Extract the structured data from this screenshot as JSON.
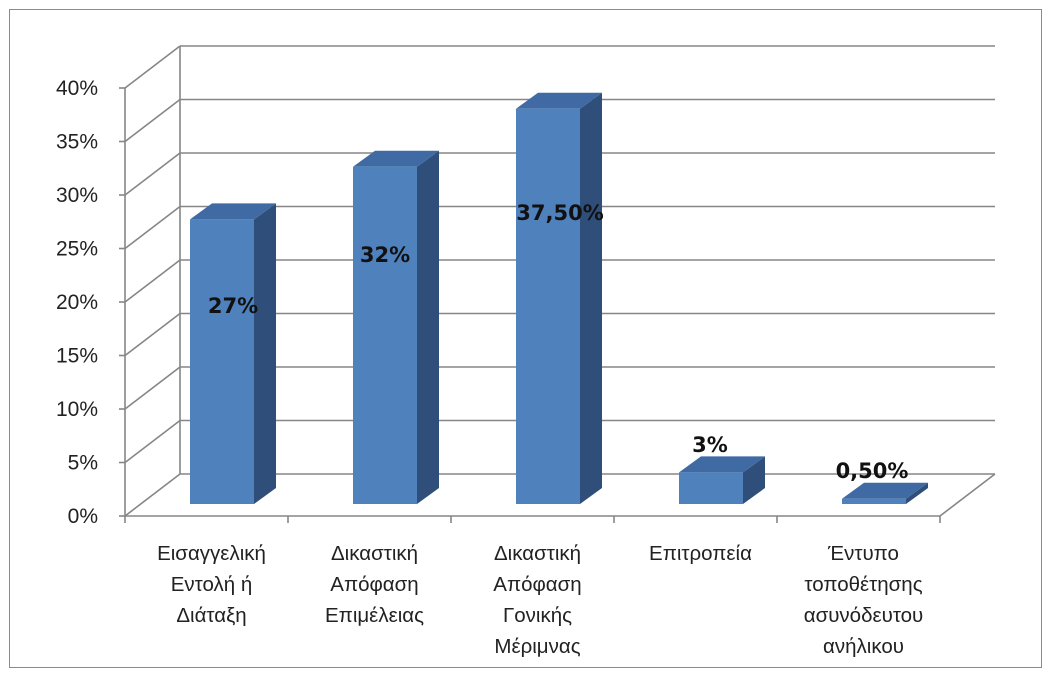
{
  "chart_data": {
    "type": "bar",
    "categories": [
      [
        "Εισαγγελική",
        "Εντολή ή",
        "Διάταξη"
      ],
      [
        "Δικαστική",
        "Απόφαση",
        "Επιμέλειας"
      ],
      [
        "Δικαστική",
        "Απόφαση",
        "Γονικής",
        "Μέριμνας"
      ],
      [
        "Επιτροπεία"
      ],
      [
        "Έντυπο",
        "τοποθέτησης",
        "ασυνόδευτου",
        "ανήλικου"
      ]
    ],
    "values": [
      27,
      32,
      37.5,
      3,
      0.5
    ],
    "data_labels": [
      "27%",
      "32%",
      "37,50%",
      "3%",
      "0,50%"
    ],
    "yticks": [
      "0%",
      "5%",
      "10%",
      "15%",
      "20%",
      "25%",
      "30%",
      "35%",
      "40%"
    ],
    "ylim": [
      0,
      40
    ],
    "grid": true,
    "legend": "none",
    "style": "3d-column",
    "colors": {
      "bar_front": "#4f81bd",
      "bar_side": "#2f4f7a",
      "bar_top": "#3f6aa3",
      "grid": "#868686",
      "axis": "#868686"
    }
  }
}
